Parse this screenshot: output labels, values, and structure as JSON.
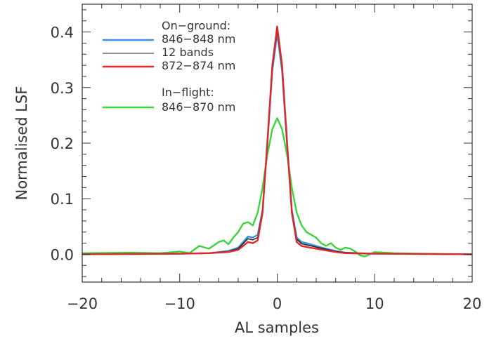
{
  "chart_data": {
    "type": "line",
    "title": "",
    "xlabel": "AL samples",
    "ylabel": "Normalised LSF",
    "xlim": [
      -20,
      20
    ],
    "ylim": [
      -0.05,
      0.45
    ],
    "x_ticks": [
      "−20",
      "−10",
      "0",
      "10",
      "20"
    ],
    "y_ticks": [
      "0.0",
      "0.1",
      "0.2",
      "0.3",
      "0.4"
    ],
    "grid": false,
    "legend_position": "top-left",
    "legend": {
      "on_ground_heading": "On−ground:",
      "in_flight_heading": "In−flight:"
    },
    "series": [
      {
        "name": "846−848 nm",
        "color": "#3d8fe0",
        "x": [
          -20,
          -10,
          -7,
          -5,
          -4,
          -3.5,
          -3,
          -2.5,
          -2,
          -1.5,
          -1,
          -0.5,
          0,
          0.5,
          1,
          1.5,
          2,
          2.5,
          3,
          4,
          5,
          6,
          7,
          10,
          20
        ],
        "y": [
          0.0,
          0.001,
          0.002,
          0.006,
          0.012,
          0.022,
          0.032,
          0.03,
          0.035,
          0.08,
          0.2,
          0.33,
          0.398,
          0.33,
          0.2,
          0.08,
          0.03,
          0.022,
          0.02,
          0.015,
          0.01,
          0.006,
          0.003,
          0.001,
          0.0
        ]
      },
      {
        "name": "12 bands",
        "color": "#222222",
        "x": [
          -20,
          -10,
          -7,
          -5,
          -4,
          -3.5,
          -3,
          -2.5,
          -2,
          -1.5,
          -1,
          -0.5,
          0,
          0.5,
          1,
          1.5,
          2,
          2.5,
          3,
          4,
          5,
          6,
          7,
          10,
          20
        ],
        "y": [
          0.0,
          0.001,
          0.002,
          0.005,
          0.01,
          0.019,
          0.028,
          0.026,
          0.03,
          0.078,
          0.202,
          0.335,
          0.404,
          0.335,
          0.202,
          0.078,
          0.027,
          0.019,
          0.017,
          0.013,
          0.009,
          0.005,
          0.003,
          0.001,
          0.0
        ]
      },
      {
        "name": "872−874 nm",
        "color": "#e02828",
        "x": [
          -20,
          -10,
          -7,
          -5,
          -4,
          -3.5,
          -3,
          -2.5,
          -2,
          -1.5,
          -1,
          -0.5,
          0,
          0.5,
          1,
          1.5,
          2,
          2.5,
          3,
          4,
          5,
          6,
          7,
          10,
          20
        ],
        "y": [
          0.0,
          0.001,
          0.002,
          0.004,
          0.008,
          0.015,
          0.022,
          0.02,
          0.025,
          0.075,
          0.205,
          0.34,
          0.41,
          0.34,
          0.205,
          0.075,
          0.022,
          0.015,
          0.013,
          0.01,
          0.007,
          0.004,
          0.002,
          0.001,
          0.0
        ]
      },
      {
        "name": "846−870 nm",
        "color": "#3cd43c",
        "x": [
          -20,
          -15,
          -12,
          -10,
          -9,
          -8,
          -7,
          -6,
          -5.5,
          -5,
          -4.5,
          -4,
          -3.5,
          -3,
          -2.5,
          -2,
          -1.5,
          -1,
          -0.5,
          0,
          0.5,
          1,
          1.5,
          2,
          2.5,
          3,
          3.5,
          4,
          4.5,
          5,
          5.5,
          6,
          6.5,
          7,
          7.5,
          8,
          8.5,
          9,
          10,
          12,
          15,
          20
        ],
        "y": [
          0.002,
          0.003,
          0.002,
          0.005,
          0.002,
          0.015,
          0.01,
          0.022,
          0.025,
          0.018,
          0.03,
          0.04,
          0.055,
          0.058,
          0.052,
          0.075,
          0.12,
          0.18,
          0.225,
          0.245,
          0.225,
          0.18,
          0.12,
          0.075,
          0.052,
          0.04,
          0.035,
          0.03,
          0.02,
          0.015,
          0.02,
          0.012,
          0.008,
          0.012,
          0.01,
          0.005,
          -0.002,
          -0.004,
          0.004,
          0.002,
          0.001,
          0.0
        ]
      }
    ]
  }
}
